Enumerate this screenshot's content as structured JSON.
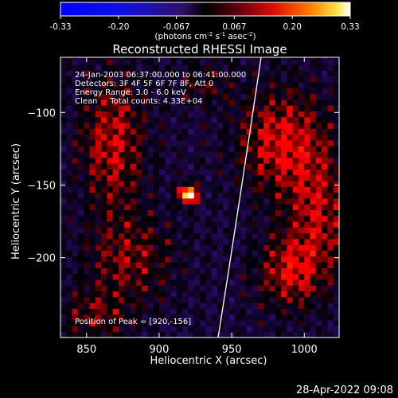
{
  "chart_data": {
    "type": "heatmap",
    "title": "Reconstructed RHESSI Image",
    "xlabel": "Heliocentric X (arcsec)",
    "ylabel": "Heliocentric Y (arcsec)",
    "xlim": [
      832,
      1024
    ],
    "ylim": [
      -255,
      -62
    ],
    "xticks": [
      850,
      900,
      950,
      1000
    ],
    "yticks": [
      -100,
      -150,
      -200
    ],
    "colorbar": {
      "range": [
        -0.33,
        0.33
      ],
      "ticks": [
        "-0.33",
        "-0.20",
        "-0.067",
        "0.067",
        "0.20",
        "0.33"
      ],
      "unit_prefix": "(photons cm",
      "unit_sup1": "-2",
      "unit_mid": " s",
      "unit_sup2": "-1",
      "unit_mid2": " asec",
      "unit_sup3": "-2",
      "unit_suffix": ")"
    },
    "info_lines": [
      "24-Jan-2003 06:37:00.000 to 06:41:00.000",
      "Detectors: 3F 4F 5F 6F 7F 8F, Att 0",
      "Energy Range: 3.0 - 6.0 keV",
      "Clean     Total counts: 4.33E+04"
    ],
    "peak_label": "Position of Peak = [920,-156]",
    "peak": [
      920,
      -156
    ],
    "date_stamp": "28-Apr-2022 09:08",
    "colors": {
      "cmap_low": "#0000ff",
      "cmap_mid": "#000000",
      "cmap_high": "#ffffff"
    }
  }
}
